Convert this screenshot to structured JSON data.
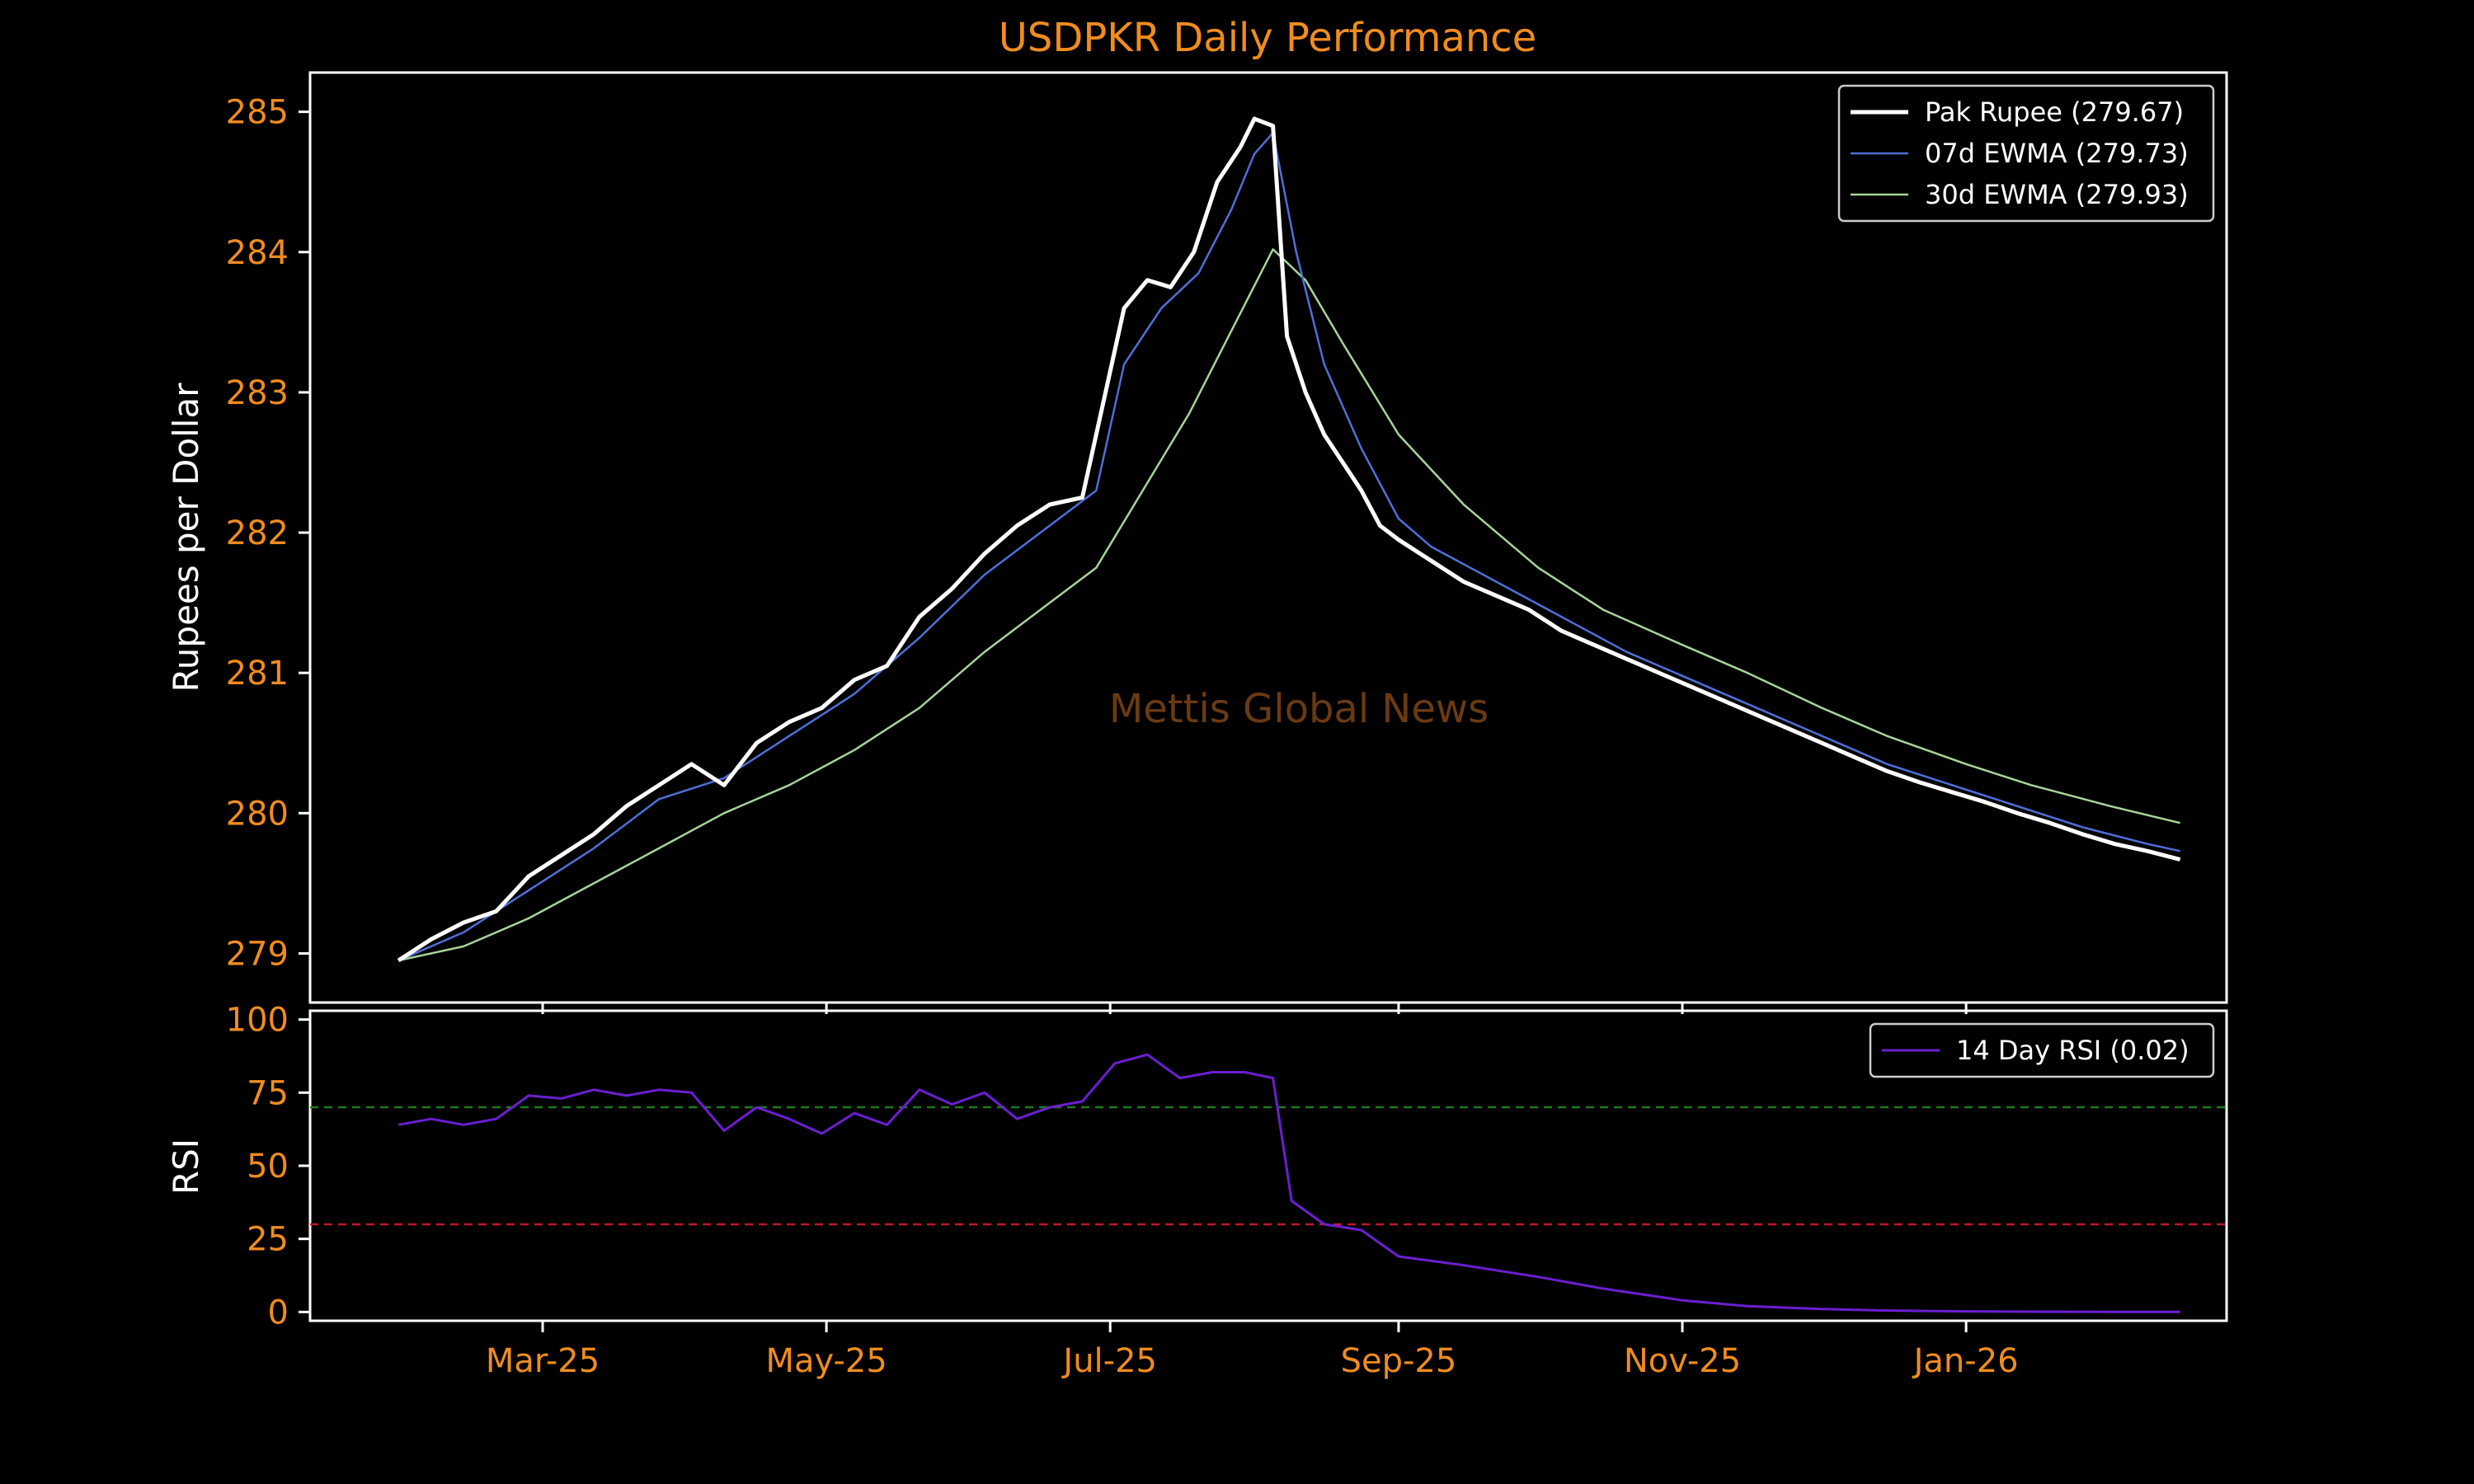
{
  "chart_data": [
    {
      "type": "line",
      "title": "USDPKR Daily Performance",
      "ylabel": "Rupees per Dollar",
      "xlabel": "",
      "ylim": [
        278.65,
        285.28
      ],
      "xlim": [
        "2025-01-10",
        "2026-02-26"
      ],
      "yticks": [
        279,
        280,
        281,
        282,
        283,
        284,
        285
      ],
      "xticks": [
        {
          "date": "2025-03-01",
          "label": "Mar-25"
        },
        {
          "date": "2025-05-01",
          "label": "May-25"
        },
        {
          "date": "2025-07-01",
          "label": "Jul-25"
        },
        {
          "date": "2025-09-01",
          "label": "Sep-25"
        },
        {
          "date": "2025-11-01",
          "label": "Nov-25"
        },
        {
          "date": "2026-01-01",
          "label": "Jan-26"
        }
      ],
      "legend_position": "top-right",
      "watermark": "Mettis Global News",
      "series": [
        {
          "name": "Pak Rupee (279.67)",
          "color": "#ffffff",
          "points": [
            [
              "2025-01-29",
              278.95
            ],
            [
              "2025-02-05",
              279.1
            ],
            [
              "2025-02-12",
              279.22
            ],
            [
              "2025-02-19",
              279.3
            ],
            [
              "2025-02-26",
              279.55
            ],
            [
              "2025-03-05",
              279.7
            ],
            [
              "2025-03-12",
              279.85
            ],
            [
              "2025-03-19",
              280.05
            ],
            [
              "2025-03-26",
              280.2
            ],
            [
              "2025-04-02",
              280.35
            ],
            [
              "2025-04-09",
              280.2
            ],
            [
              "2025-04-16",
              280.5
            ],
            [
              "2025-04-23",
              280.65
            ],
            [
              "2025-04-30",
              280.75
            ],
            [
              "2025-05-07",
              280.95
            ],
            [
              "2025-05-14",
              281.05
            ],
            [
              "2025-05-21",
              281.4
            ],
            [
              "2025-05-28",
              281.6
            ],
            [
              "2025-06-04",
              281.85
            ],
            [
              "2025-06-11",
              282.05
            ],
            [
              "2025-06-18",
              282.2
            ],
            [
              "2025-06-25",
              282.25
            ],
            [
              "2025-06-30",
              283.0
            ],
            [
              "2025-07-04",
              283.6
            ],
            [
              "2025-07-09",
              283.8
            ],
            [
              "2025-07-14",
              283.75
            ],
            [
              "2025-07-19",
              284.0
            ],
            [
              "2025-07-24",
              284.5
            ],
            [
              "2025-07-29",
              284.75
            ],
            [
              "2025-08-01",
              284.95
            ],
            [
              "2025-08-05",
              284.9
            ],
            [
              "2025-08-08",
              283.4
            ],
            [
              "2025-08-12",
              283.0
            ],
            [
              "2025-08-16",
              282.7
            ],
            [
              "2025-08-20",
              282.5
            ],
            [
              "2025-08-24",
              282.3
            ],
            [
              "2025-08-28",
              282.05
            ],
            [
              "2025-09-01",
              281.95
            ],
            [
              "2025-09-08",
              281.8
            ],
            [
              "2025-09-15",
              281.65
            ],
            [
              "2025-09-22",
              281.55
            ],
            [
              "2025-09-29",
              281.45
            ],
            [
              "2025-10-06",
              281.3
            ],
            [
              "2025-10-13",
              281.2
            ],
            [
              "2025-10-20",
              281.1
            ],
            [
              "2025-10-27",
              281.0
            ],
            [
              "2025-11-03",
              280.9
            ],
            [
              "2025-11-10",
              280.8
            ],
            [
              "2025-11-17",
              280.7
            ],
            [
              "2025-11-24",
              280.6
            ],
            [
              "2025-12-01",
              280.5
            ],
            [
              "2025-12-08",
              280.4
            ],
            [
              "2025-12-15",
              280.3
            ],
            [
              "2025-12-22",
              280.22
            ],
            [
              "2025-12-29",
              280.15
            ],
            [
              "2026-01-05",
              280.08
            ],
            [
              "2026-01-12",
              280.0
            ],
            [
              "2026-01-19",
              279.93
            ],
            [
              "2026-01-26",
              279.85
            ],
            [
              "2026-02-02",
              279.78
            ],
            [
              "2026-02-09",
              279.73
            ],
            [
              "2026-02-16",
              279.67
            ]
          ]
        },
        {
          "name": "07d EWMA (279.73)",
          "color": "#4f6fd8",
          "points": [
            [
              "2025-01-29",
              278.95
            ],
            [
              "2025-02-12",
              279.15
            ],
            [
              "2025-02-26",
              279.45
            ],
            [
              "2025-03-12",
              279.75
            ],
            [
              "2025-03-26",
              280.1
            ],
            [
              "2025-04-09",
              280.25
            ],
            [
              "2025-04-23",
              280.55
            ],
            [
              "2025-05-07",
              280.85
            ],
            [
              "2025-05-21",
              281.25
            ],
            [
              "2025-06-04",
              281.7
            ],
            [
              "2025-06-18",
              282.05
            ],
            [
              "2025-06-28",
              282.3
            ],
            [
              "2025-07-04",
              283.2
            ],
            [
              "2025-07-12",
              283.6
            ],
            [
              "2025-07-20",
              283.85
            ],
            [
              "2025-07-27",
              284.3
            ],
            [
              "2025-08-01",
              284.7
            ],
            [
              "2025-08-05",
              284.85
            ],
            [
              "2025-08-10",
              284.0
            ],
            [
              "2025-08-16",
              283.2
            ],
            [
              "2025-08-24",
              282.6
            ],
            [
              "2025-09-01",
              282.1
            ],
            [
              "2025-09-08",
              281.9
            ],
            [
              "2025-09-22",
              281.65
            ],
            [
              "2025-10-06",
              281.4
            ],
            [
              "2025-10-20",
              281.15
            ],
            [
              "2025-11-03",
              280.95
            ],
            [
              "2025-11-17",
              280.75
            ],
            [
              "2025-12-01",
              280.55
            ],
            [
              "2025-12-15",
              280.35
            ],
            [
              "2025-12-29",
              280.2
            ],
            [
              "2026-01-12",
              280.05
            ],
            [
              "2026-01-26",
              279.9
            ],
            [
              "2026-02-09",
              279.78
            ],
            [
              "2026-02-16",
              279.73
            ]
          ]
        },
        {
          "name": "30d EWMA (279.93)",
          "color": "#a8d49a",
          "points": [
            [
              "2025-01-29",
              278.95
            ],
            [
              "2025-02-12",
              279.05
            ],
            [
              "2025-02-26",
              279.25
            ],
            [
              "2025-03-12",
              279.5
            ],
            [
              "2025-03-26",
              279.75
            ],
            [
              "2025-04-09",
              280.0
            ],
            [
              "2025-04-23",
              280.2
            ],
            [
              "2025-05-07",
              280.45
            ],
            [
              "2025-05-21",
              280.75
            ],
            [
              "2025-06-04",
              281.15
            ],
            [
              "2025-06-18",
              281.5
            ],
            [
              "2025-06-28",
              281.75
            ],
            [
              "2025-07-08",
              282.3
            ],
            [
              "2025-07-18",
              282.85
            ],
            [
              "2025-07-28",
              283.5
            ],
            [
              "2025-08-05",
              284.02
            ],
            [
              "2025-08-12",
              283.8
            ],
            [
              "2025-08-20",
              283.35
            ],
            [
              "2025-09-01",
              282.7
            ],
            [
              "2025-09-15",
              282.2
            ],
            [
              "2025-10-01",
              281.75
            ],
            [
              "2025-10-15",
              281.45
            ],
            [
              "2025-11-01",
              281.2
            ],
            [
              "2025-11-15",
              281.0
            ],
            [
              "2025-12-01",
              280.75
            ],
            [
              "2025-12-15",
              280.55
            ],
            [
              "2026-01-01",
              280.35
            ],
            [
              "2026-01-15",
              280.2
            ],
            [
              "2026-02-01",
              280.05
            ],
            [
              "2026-02-16",
              279.93
            ]
          ]
        }
      ]
    },
    {
      "type": "line",
      "title": "",
      "ylabel": "RSI",
      "xlabel": "",
      "ylim": [
        -3,
        103
      ],
      "yticks": [
        0,
        25,
        50,
        75,
        100
      ],
      "legend_position": "top-right",
      "reference_lines": [
        {
          "y": 70,
          "color": "#1f7a1f"
        },
        {
          "y": 30,
          "color": "#c0182a"
        }
      ],
      "series": [
        {
          "name": "14 Day RSI (0.02)",
          "color": "#6a1fd0",
          "points": [
            [
              "2025-01-29",
              64
            ],
            [
              "2025-02-05",
              66
            ],
            [
              "2025-02-12",
              64
            ],
            [
              "2025-02-19",
              66
            ],
            [
              "2025-02-26",
              74
            ],
            [
              "2025-03-05",
              73
            ],
            [
              "2025-03-12",
              76
            ],
            [
              "2025-03-19",
              74
            ],
            [
              "2025-03-26",
              76
            ],
            [
              "2025-04-02",
              75
            ],
            [
              "2025-04-09",
              62
            ],
            [
              "2025-04-16",
              70
            ],
            [
              "2025-04-23",
              66
            ],
            [
              "2025-04-30",
              61
            ],
            [
              "2025-05-07",
              68
            ],
            [
              "2025-05-14",
              64
            ],
            [
              "2025-05-21",
              76
            ],
            [
              "2025-05-28",
              71
            ],
            [
              "2025-06-04",
              75
            ],
            [
              "2025-06-11",
              66
            ],
            [
              "2025-06-18",
              70
            ],
            [
              "2025-06-25",
              72
            ],
            [
              "2025-07-02",
              85
            ],
            [
              "2025-07-09",
              88
            ],
            [
              "2025-07-16",
              80
            ],
            [
              "2025-07-23",
              82
            ],
            [
              "2025-07-30",
              82
            ],
            [
              "2025-08-05",
              80
            ],
            [
              "2025-08-09",
              38
            ],
            [
              "2025-08-16",
              30
            ],
            [
              "2025-08-24",
              28
            ],
            [
              "2025-09-01",
              19
            ],
            [
              "2025-09-15",
              16
            ],
            [
              "2025-10-01",
              12
            ],
            [
              "2025-10-15",
              8
            ],
            [
              "2025-11-01",
              4
            ],
            [
              "2025-11-15",
              2
            ],
            [
              "2025-12-01",
              1
            ],
            [
              "2025-12-15",
              0.5
            ],
            [
              "2026-01-01",
              0.2
            ],
            [
              "2026-01-15",
              0.1
            ],
            [
              "2026-02-01",
              0.05
            ],
            [
              "2026-02-16",
              0.02
            ]
          ]
        }
      ]
    }
  ]
}
